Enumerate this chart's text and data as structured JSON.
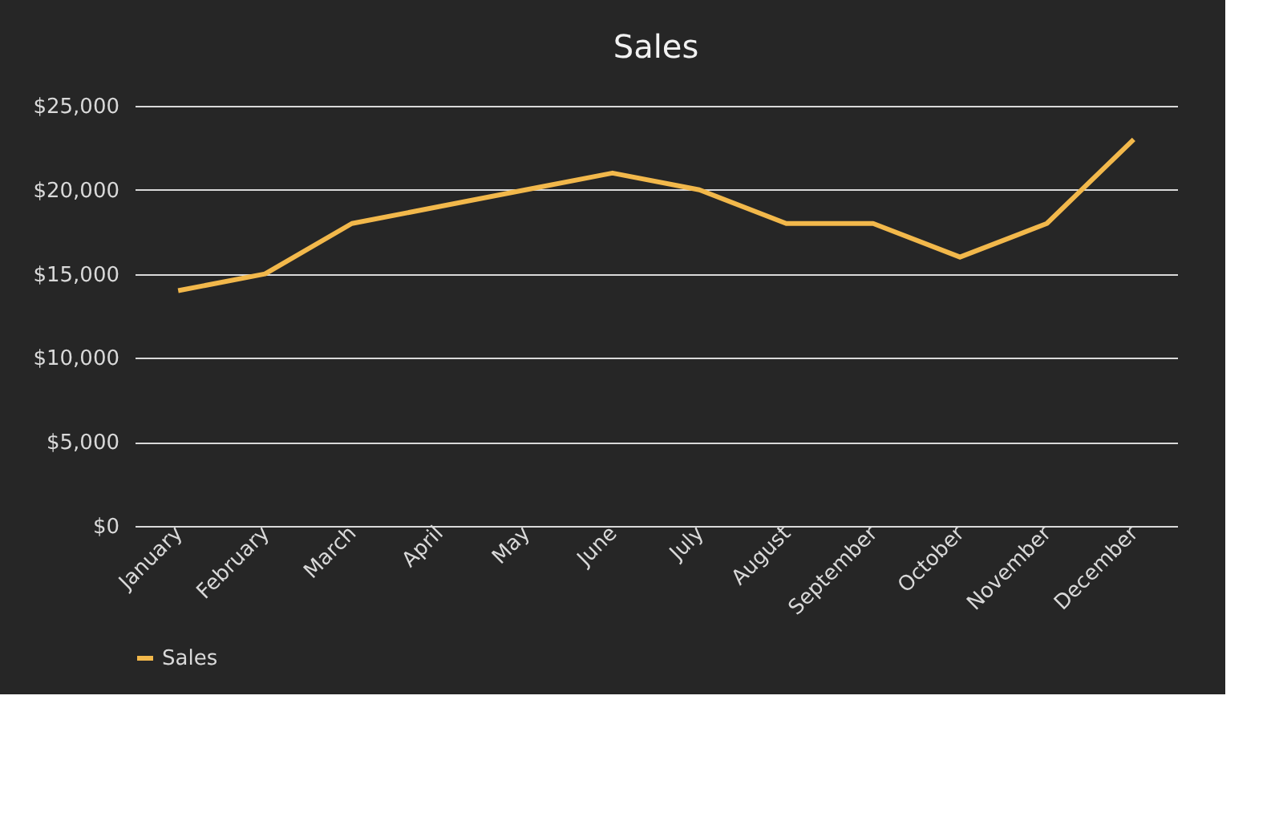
{
  "chart_data": {
    "type": "line",
    "title": "Sales",
    "categories": [
      "January",
      "February",
      "March",
      "April",
      "May",
      "June",
      "July",
      "August",
      "September",
      "October",
      "November",
      "December"
    ],
    "series": [
      {
        "name": "Sales",
        "color": "#f2b84b",
        "values": [
          14000,
          15000,
          18000,
          19000,
          20000,
          21000,
          20000,
          18000,
          18000,
          16000,
          18000,
          23000
        ]
      }
    ],
    "ylim": [
      0,
      25000
    ],
    "yticks": [
      {
        "value": 0,
        "label": "$0"
      },
      {
        "value": 5000,
        "label": "$5,000"
      },
      {
        "value": 10000,
        "label": "$10,000"
      },
      {
        "value": 15000,
        "label": "$15,000"
      },
      {
        "value": 20000,
        "label": "$20,000"
      },
      {
        "value": 25000,
        "label": "$25,000"
      }
    ],
    "grid": "y",
    "legend": "bottom",
    "marker": "none",
    "line_style": "solid"
  }
}
